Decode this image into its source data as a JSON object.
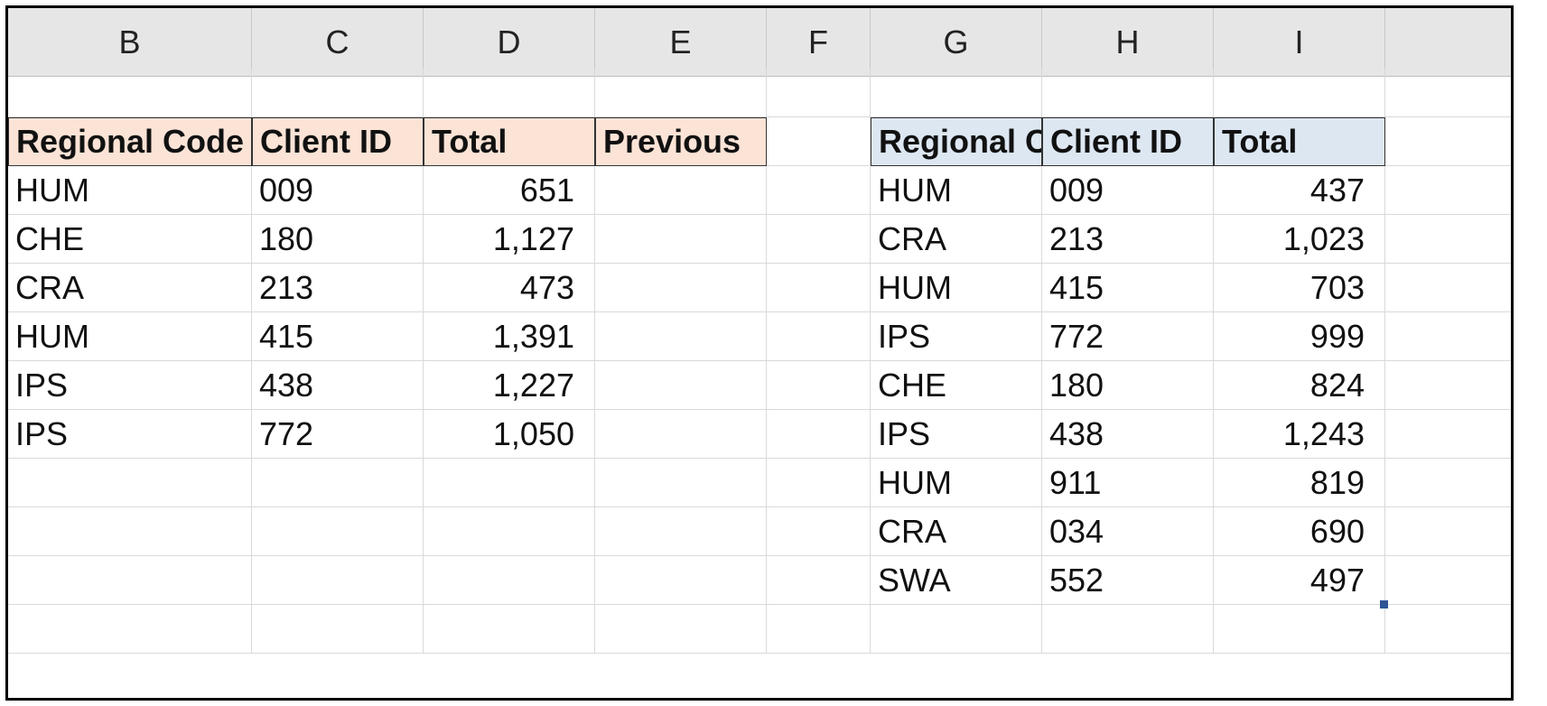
{
  "columns": [
    "B",
    "C",
    "D",
    "E",
    "F",
    "G",
    "H",
    "I"
  ],
  "left_table": {
    "headers": [
      "Regional Code",
      "Client ID",
      "Total",
      "Previous"
    ],
    "rows": [
      [
        "HUM",
        "009",
        "651",
        ""
      ],
      [
        "CHE",
        "180",
        "1,127",
        ""
      ],
      [
        "CRA",
        "213",
        "473",
        ""
      ],
      [
        "HUM",
        "415",
        "1,391",
        ""
      ],
      [
        "IPS",
        "438",
        "1,227",
        ""
      ],
      [
        "IPS",
        "772",
        "1,050",
        ""
      ]
    ]
  },
  "right_table": {
    "headers": [
      "Regional C",
      "Client ID",
      "Total"
    ],
    "rows": [
      [
        "HUM",
        "009",
        "437"
      ],
      [
        "CRA",
        "213",
        "1,023"
      ],
      [
        "HUM",
        "415",
        "703"
      ],
      [
        "IPS",
        "772",
        "999"
      ],
      [
        "CHE",
        "180",
        "824"
      ],
      [
        "IPS",
        "438",
        "1,243"
      ],
      [
        "HUM",
        "911",
        "819"
      ],
      [
        "CRA",
        "034",
        "690"
      ],
      [
        "SWA",
        "552",
        "497"
      ]
    ]
  },
  "colors": {
    "left_header_fill": "#fbe3d6",
    "right_header_fill": "#dde7f2",
    "column_header_fill": "#e6e6e6",
    "gridline": "#d9d9d9"
  }
}
